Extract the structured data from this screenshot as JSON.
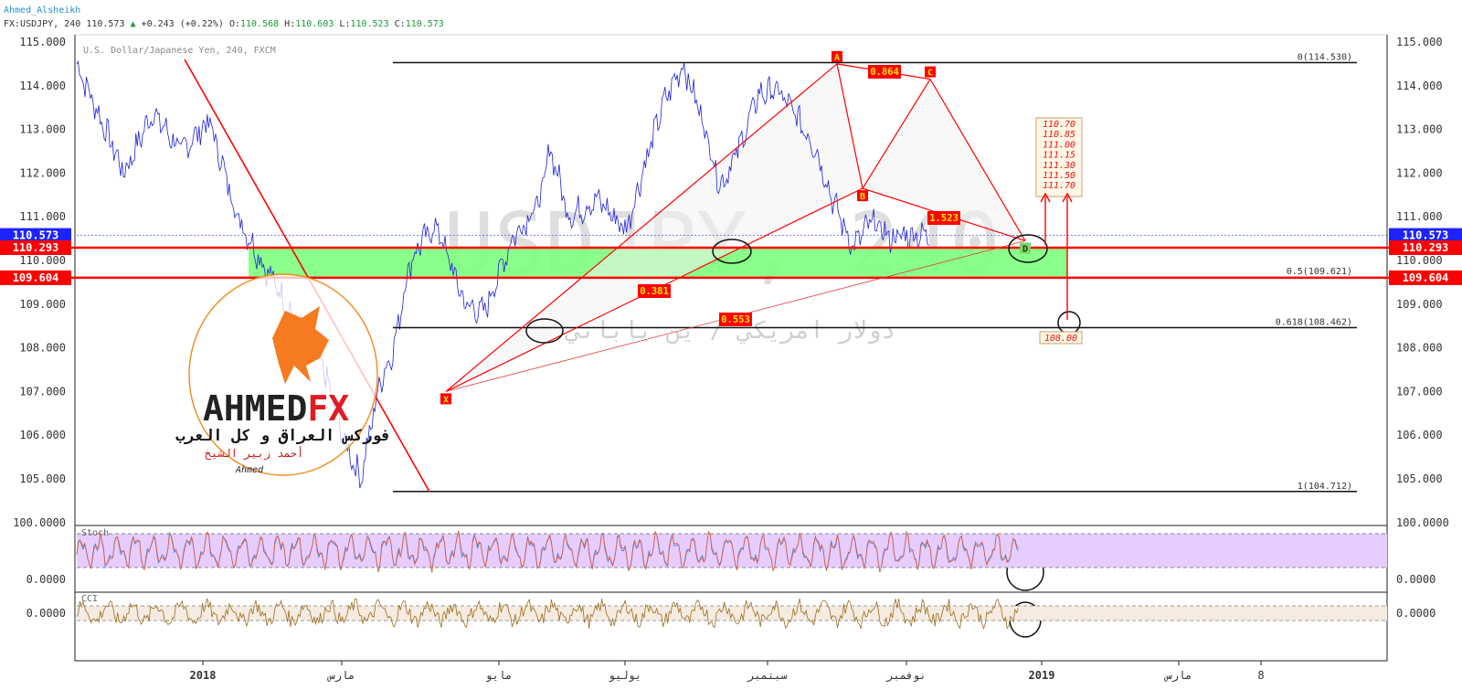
{
  "header": {
    "author": "Ahmed_Alsheikh",
    "symbol": "FX:USDJPY, 240",
    "last": "110.573",
    "change": "+0.243",
    "change_pct": "(+0.22%)",
    "o_label": "O:",
    "o": "110.568",
    "h_label": "H:",
    "h": "110.603",
    "l_label": "L:",
    "l": "110.523",
    "c_label": "C:",
    "c": "110.573"
  },
  "instrument": "U.S. Dollar/Japanese Yen, 240, FXCM",
  "watermark": "USDJPY, 240",
  "watermark_ar": "دولار امريكي / ين ياباني",
  "colors": {
    "price": "#1e22d6",
    "red": "#ff0000",
    "green": "#7dff7d",
    "stoch": "#e6ccff",
    "cci_band": "#f5ebe0",
    "cci": "#9a6b1e",
    "blue_tag": "#1e22ff"
  },
  "chart_data": {
    "type": "line",
    "ylim": [
      104.3,
      115.2
    ],
    "y_ticks": [
      "115.000",
      "114.000",
      "113.000",
      "112.000",
      "111.000",
      "110.000",
      "109.000",
      "108.000",
      "107.000",
      "106.000",
      "105.000"
    ],
    "x_ticks": [
      "2018",
      "مارس",
      "مايو",
      "يوليو",
      "سبتمبر",
      "نوفمبر",
      "2019",
      "مارس",
      "8"
    ],
    "x_tick_bold": [
      true,
      false,
      false,
      false,
      false,
      false,
      true,
      false,
      false
    ],
    "x": [
      0,
      0.02,
      0.05,
      0.08,
      0.11,
      0.14,
      0.17,
      0.2,
      0.23,
      0.26,
      0.28,
      0.3,
      0.32,
      0.335,
      0.35,
      0.36,
      0.38,
      0.41,
      0.43,
      0.46,
      0.49,
      0.5,
      0.52,
      0.55,
      0.58,
      0.6,
      0.62,
      0.64,
      0.66,
      0.68,
      0.7,
      0.72,
      0.74,
      0.76,
      0.78,
      0.8,
      0.82,
      0.84,
      0.86,
      0.88,
      0.9,
      0.92,
      0.94,
      0.95,
      0.96,
      0.97,
      0.98,
      0.99,
      1.0
    ],
    "y": [
      114.5,
      113.5,
      112.0,
      113.4,
      112.5,
      113.2,
      111.0,
      109.8,
      108.7,
      107.6,
      106.0,
      105.0,
      107.2,
      108.0,
      109.8,
      110.3,
      110.8,
      109.0,
      108.8,
      110.5,
      111.4,
      112.6,
      111.0,
      111.4,
      110.7,
      112.2,
      113.6,
      114.5,
      113.3,
      111.7,
      112.6,
      113.8,
      113.9,
      113.3,
      112.6,
      111.3,
      110.3,
      110.9,
      110.5,
      110.6,
      110.57,
      110.57,
      110.57,
      110.57,
      110.57,
      110.57,
      110.57,
      110.57,
      110.57
    ],
    "price_tags": [
      {
        "label": "110.573",
        "value": 110.573,
        "color": "#1e22ff"
      },
      {
        "label": "110.293",
        "value": 110.293,
        "color": "#ff0000"
      },
      {
        "label": "109.604",
        "value": 109.604,
        "color": "#ff0000"
      }
    ],
    "fib_levels": [
      {
        "label": "0(114.530)",
        "value": 114.53
      },
      {
        "label": "0.5(109.621)",
        "value": 109.621
      },
      {
        "label": "0.618(108.462)",
        "value": 108.462
      },
      {
        "label": "1(104.712)",
        "value": 104.712
      }
    ],
    "pattern_points": [
      {
        "label": "X",
        "value": 107.0
      },
      {
        "label": "A",
        "value": 114.5
      },
      {
        "label": "B",
        "value": 111.65
      },
      {
        "label": "C",
        "value": 114.15
      },
      {
        "label": "D",
        "value": 110.45
      }
    ],
    "ratios": [
      "0.864",
      "1.523",
      "0.381",
      "0.553"
    ],
    "targets": [
      "110.70",
      "110.85",
      "111.00",
      "111.15",
      "111.30",
      "111.50",
      "111.70"
    ],
    "target_low": "108.00",
    "stoch": {
      "label": "Stoch",
      "y_ticks": [
        "100.0000",
        "0.0000"
      ]
    },
    "cci": {
      "label": "CCI",
      "y_ticks": [
        "0.0000"
      ]
    }
  },
  "logo": {
    "brand_black": "AHMED",
    "brand_red": "FX",
    "tagline": "فوركس العراق و كل العرب",
    "name": "أحمد زبير الشيخ",
    "signature": "Ahmed"
  }
}
